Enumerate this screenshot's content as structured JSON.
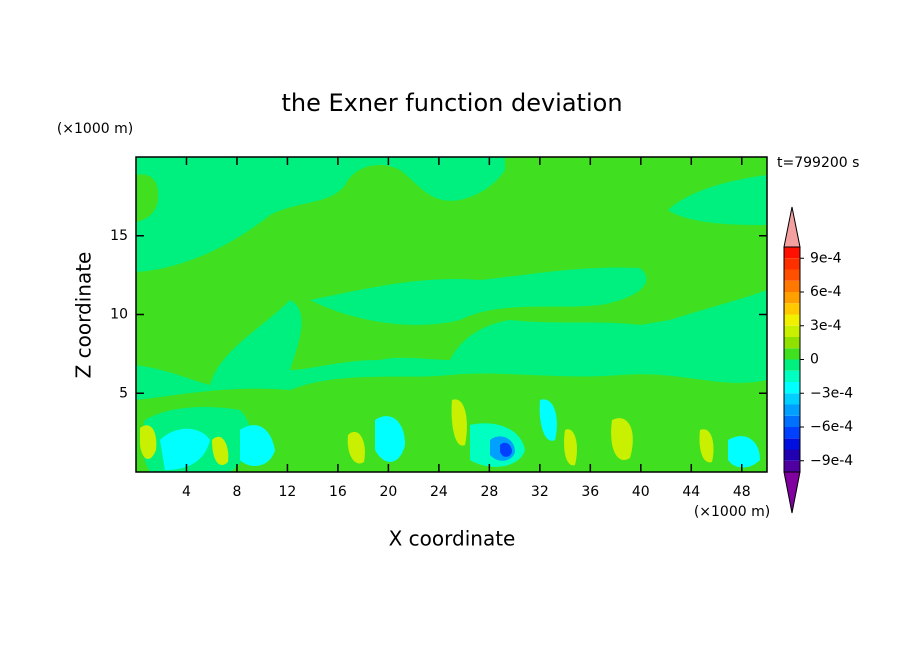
{
  "chart_data": {
    "type": "contour",
    "title": "the Exner function deviation",
    "x_label": "X coordinate",
    "y_label": "Z coordinate",
    "x_unit": "(×1000 m)",
    "y_unit": "(×1000 m)",
    "time_label": "t=799200 s",
    "xlim": [
      0,
      50
    ],
    "ylim": [
      0,
      20
    ],
    "xticks": [
      4,
      8,
      12,
      16,
      20,
      24,
      28,
      32,
      36,
      40,
      44,
      48
    ],
    "yticks": [
      5,
      10,
      15
    ],
    "clim": [
      -0.001,
      0.001
    ],
    "colors": [
      "#5000a0",
      "#2000b0",
      "#0010e0",
      "#0040ff",
      "#0070ff",
      "#00a0ff",
      "#00d0ff",
      "#00ffff",
      "#00ffc0",
      "#00f080",
      "#40e020",
      "#90e000",
      "#c8f000",
      "#f0f000",
      "#ffc800",
      "#ffa000",
      "#ff7800",
      "#ff5000",
      "#ff3000",
      "#ff1000"
    ],
    "over_color": "#f4a0a0",
    "under_color": "#8000a0",
    "cticks": [
      {
        "value": 0.0009,
        "label": "9e-4"
      },
      {
        "value": 0.0006,
        "label": "6e-4"
      },
      {
        "value": 0.0003,
        "label": "3e-4"
      },
      0,
      {
        "value": -0.0003,
        "label": "−3e-4"
      },
      {
        "value": -0.0006,
        "label": "−6e-4"
      },
      {
        "value": -0.0009,
        "label": "−9e-4"
      }
    ]
  }
}
